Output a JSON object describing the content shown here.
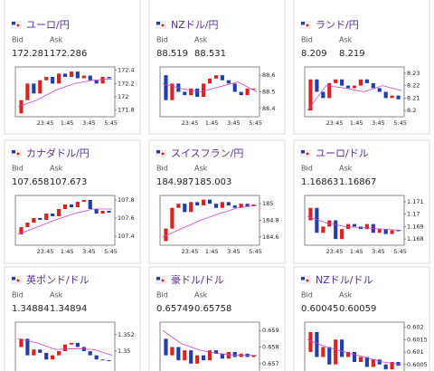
{
  "labels": {
    "bid": "Bid",
    "ask": "Ask"
  },
  "xticks": [
    "23:45",
    "1:45",
    "3:45",
    "5:45"
  ],
  "cards": [
    {
      "title": "ユーロ/円",
      "bid": "172.281",
      "ask": "172.286",
      "chart": {
        "type": "candlestick",
        "ylim": [
          171.7,
          172.45
        ],
        "yticks": [
          171.8,
          172,
          172.2,
          172.4
        ],
        "open": 171.75,
        "close": [
          171.95,
          172.2,
          172.05,
          172.25,
          172.3,
          172.2,
          172.35,
          172.3,
          172.38,
          172.28,
          172.32,
          172.25,
          172.2,
          172.3,
          172.28
        ],
        "ma": [
          171.85,
          171.95,
          172.1,
          172.2,
          172.25,
          172.27
        ]
      }
    },
    {
      "title": "NZドル/円",
      "bid": "88.519",
      "ask": "88.531",
      "chart": {
        "type": "candlestick",
        "ylim": [
          88.35,
          88.65
        ],
        "yticks": [
          88.4,
          88.5,
          88.6
        ],
        "open": 88.6,
        "close": [
          88.45,
          88.55,
          88.5,
          88.48,
          88.52,
          88.47,
          88.55,
          88.58,
          88.6,
          88.57,
          88.55,
          88.5,
          88.48,
          88.52,
          88.52
        ],
        "ma": [
          88.55,
          88.52,
          88.5,
          88.53,
          88.56,
          88.5
        ]
      }
    },
    {
      "title": "ランド/円",
      "bid": "8.209",
      "ask": "8.219",
      "chart": {
        "type": "candlestick",
        "ylim": [
          8.195,
          8.235
        ],
        "yticks": [
          8.2,
          8.21,
          8.22,
          8.23
        ],
        "open": 8.2,
        "close": [
          8.225,
          8.215,
          8.21,
          8.222,
          8.225,
          8.22,
          8.218,
          8.22,
          8.225,
          8.222,
          8.218,
          8.215,
          8.21,
          8.212,
          8.209
        ],
        "ma": [
          8.2,
          8.22,
          8.218,
          8.215,
          8.22,
          8.216
        ]
      }
    },
    {
      "title": "カナダドル/円",
      "bid": "107.658",
      "ask": "107.673",
      "chart": {
        "type": "candlestick",
        "ylim": [
          107.3,
          107.85
        ],
        "yticks": [
          107.4,
          107.6,
          107.8
        ],
        "open": 107.42,
        "close": [
          107.5,
          107.55,
          107.6,
          107.58,
          107.65,
          107.62,
          107.7,
          107.75,
          107.72,
          107.78,
          107.8,
          107.7,
          107.65,
          107.68,
          107.66
        ],
        "ma": [
          107.42,
          107.5,
          107.58,
          107.65,
          107.7,
          107.7
        ]
      }
    },
    {
      "title": "スイスフラン/円",
      "bid": "184.987",
      "ask": "185.003",
      "chart": {
        "type": "candlestick",
        "ylim": [
          184.5,
          185.1
        ],
        "yticks": [
          184.6,
          184.8,
          185
        ],
        "open": 184.55,
        "close": [
          184.7,
          184.95,
          185.0,
          184.9,
          185.02,
          184.98,
          185.05,
          185.0,
          184.95,
          185.02,
          184.98,
          184.95,
          185.0,
          184.97,
          184.99
        ],
        "ma": [
          184.6,
          184.7,
          184.8,
          184.88,
          184.95,
          184.98
        ]
      }
    },
    {
      "title": "ユーロ/ドル",
      "bid": "1.16863",
      "ask": "1.16867",
      "chart": {
        "type": "candlestick",
        "ylim": [
          1.1675,
          1.1715
        ],
        "yticks": [
          1.168,
          1.169,
          1.17,
          1.171
        ],
        "open": 1.1695,
        "close": [
          1.1705,
          1.1685,
          1.169,
          1.1695,
          1.168,
          1.1688,
          1.1692,
          1.169,
          1.1688,
          1.1692,
          1.1685,
          1.1688,
          1.1684,
          1.1687,
          1.16865
        ],
        "ma": [
          1.1698,
          1.1693,
          1.169,
          1.1689,
          1.1688,
          1.1687
        ]
      }
    },
    {
      "title": "英ポンド/ドル",
      "bid": "1.34884",
      "ask": "1.34894",
      "chart": {
        "type": "candlestick",
        "ylim": [
          1.3475,
          1.3535
        ],
        "yticks": [
          1.35,
          1.352
        ],
        "open": 1.3505,
        "close": [
          1.3515,
          1.3495,
          1.3502,
          1.3498,
          1.349,
          1.3495,
          1.35,
          1.3508,
          1.351,
          1.3505,
          1.35,
          1.3495,
          1.349,
          1.3489,
          1.3488
        ],
        "ma": [
          1.3515,
          1.351,
          1.3502,
          1.3503,
          1.3502,
          1.3495
        ]
      }
    },
    {
      "title": "豪ドル/ドル",
      "bid": "0.65749",
      "ask": "0.65758",
      "chart": {
        "type": "candlestick",
        "ylim": [
          0.6565,
          0.6595
        ],
        "yticks": [
          0.657,
          0.658,
          0.659
        ],
        "open": 0.6585,
        "close": [
          0.6575,
          0.658,
          0.6572,
          0.6578,
          0.657,
          0.6575,
          0.6572,
          0.6578,
          0.6576,
          0.6573,
          0.6577,
          0.6574,
          0.6576,
          0.6574,
          0.65749
        ],
        "ma": [
          0.659,
          0.6582,
          0.6578,
          0.6576,
          0.6575,
          0.6575
        ]
      }
    },
    {
      "title": "NZドル/ドル",
      "bid": "0.60045",
      "ask": "0.60059",
      "chart": {
        "type": "candlestick",
        "ylim": [
          0.6002,
          0.6022
        ],
        "yticks": [
          0.6005,
          0.601,
          0.6015,
          0.602
        ],
        "open": 0.601,
        "close": [
          0.6018,
          0.6008,
          0.6012,
          0.6005,
          0.6015,
          0.6008,
          0.601,
          0.6006,
          0.6008,
          0.6004,
          0.6007,
          0.6005,
          0.6003,
          0.6006,
          0.60045
        ],
        "ma": [
          0.6015,
          0.6012,
          0.601,
          0.6008,
          0.6006,
          0.6005
        ]
      }
    }
  ]
}
